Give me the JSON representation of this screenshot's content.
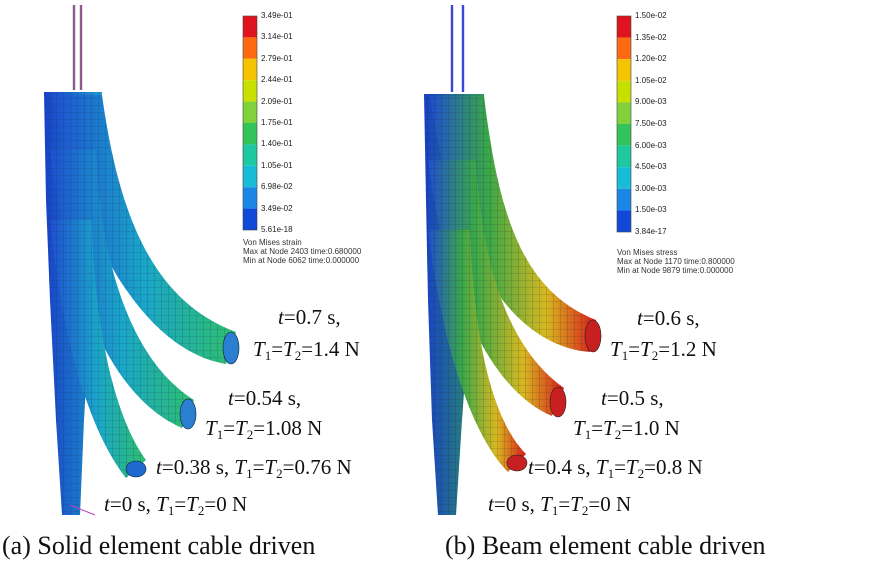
{
  "panels": [
    {
      "id": "a",
      "caption": "(a) Solid element cable driven",
      "legend": {
        "ticks": [
          "3.49e-01",
          "3.14e-01",
          "2.79e-01",
          "2.44e-01",
          "2.09e-01",
          "1.75e-01",
          "1.40e-01",
          "1.05e-01",
          "6.98e-02",
          "3.49e-02",
          "5.61e-18"
        ],
        "info": [
          "Von Mises strain",
          "Max at Node 2403 time:0.680000",
          "Min at Node 6062 time:0.000000"
        ]
      },
      "states": [
        {
          "t": "0.7 s,",
          "tension": "1.4 N"
        },
        {
          "t": "0.54 s,",
          "tension": "1.08 N"
        },
        {
          "t": "0.38 s,",
          "tension": "0.76 N"
        },
        {
          "t": "0 s,",
          "tension": "0 N"
        }
      ]
    },
    {
      "id": "b",
      "caption": "(b) Beam element cable driven",
      "legend": {
        "ticks": [
          "1.50e-02",
          "1.35e-02",
          "1.20e-02",
          "1.05e-02",
          "9.00e-03",
          "7.50e-03",
          "6.00e-03",
          "4.50e-03",
          "3.00e-03",
          "1.50e-03",
          "3.84e-17"
        ],
        "info": [
          "Von Mises stress",
          "Max at Node 1170 time:0.800000",
          "Min at Node 9879 time:0.000000"
        ]
      },
      "states": [
        {
          "t": "0.6 s,",
          "tension": "1.2 N"
        },
        {
          "t": "0.5 s,",
          "tension": "1.0 N"
        },
        {
          "t": "0.4 s,",
          "tension": "0.8 N"
        },
        {
          "t": "0 s,",
          "tension": "0 N"
        }
      ]
    }
  ],
  "symbols": {
    "t": "t",
    "T1": "T",
    "T2": "T",
    "sub1": "1",
    "sub2": "2",
    "eq": "=",
    "sep": " "
  },
  "colors": {
    "legend_bands": [
      "#e0141e",
      "#ff6a10",
      "#f5c400",
      "#c8e000",
      "#7fd23c",
      "#32c45a",
      "#1ec8a0",
      "#18bcd6",
      "#1c86e6",
      "#1048d8"
    ],
    "strain_fill": "#27b58a",
    "stress_fill": "#3da34e",
    "hot": "#d81c1c",
    "base": "#1f4fd0"
  }
}
